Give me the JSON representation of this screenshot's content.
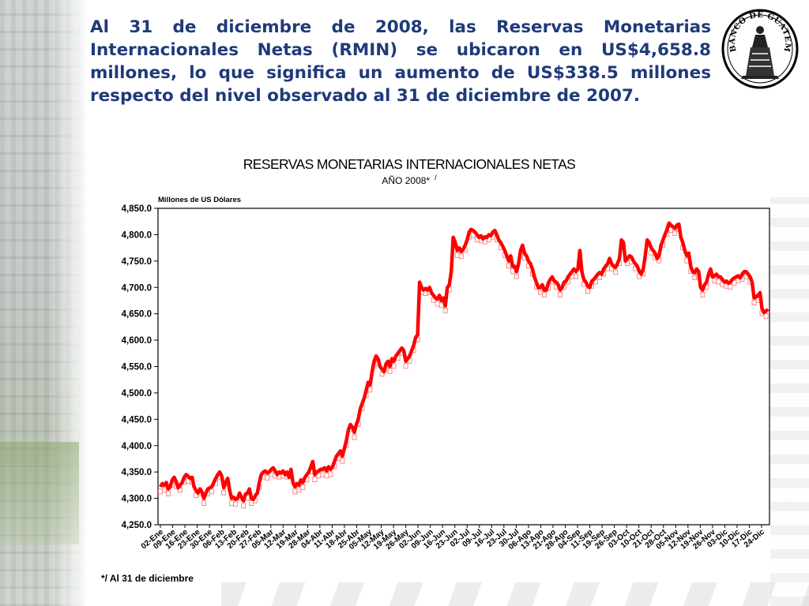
{
  "headline": "Al 31 de diciembre de 2008, las Reservas Monetarias Internacionales Netas (RMIN) se ubicaron en US$4,658.8 millones, lo que significa un aumento de US$338.5 millones respecto del nivel observado al 31 de diciembre de 2007.",
  "seal": {
    "text": "BANCO DE GUATEMALA",
    "icon": "banco-de-guatemala-seal"
  },
  "footnote": "*/ Al 31 de diciembre",
  "chart_data": {
    "type": "line",
    "title": "RESERVAS MONETARIAS INTERNACIONALES NETAS",
    "subtitle": "AÑO 2008*",
    "subtitle_mark": "/",
    "unit_label": "Millones de US Dólares",
    "xlabel": "",
    "ylabel": "",
    "ylim": [
      4250,
      4850
    ],
    "yticks": [
      "4,250.0",
      "4,300.0",
      "4,350.0",
      "4,400.0",
      "4,450.0",
      "4,500.0",
      "4,550.0",
      "4,600.0",
      "4,650.0",
      "4,700.0",
      "4,750.0",
      "4,800.0",
      "4,850.0"
    ],
    "xticks": [
      "02-Ene",
      "09-Ene",
      "16-Ene",
      "23-Ene",
      "30-Ene",
      "06-Feb",
      "13-Feb",
      "20-Feb",
      "27-Feb",
      "05-Mar",
      "12-Mar",
      "19-Mar",
      "28-Mar",
      "04-Abr",
      "11-Abr",
      "18-Abr",
      "25-Abr",
      "05-May",
      "12-May",
      "19-May",
      "26-May",
      "02-Jun",
      "09-Jun",
      "16-Jun",
      "23-Jun",
      "02-Jul",
      "09-Jul",
      "16-Jul",
      "23-Jul",
      "30-Jul",
      "06-Ago",
      "13-Ago",
      "21-Ago",
      "28-Ago",
      "04-Sep",
      "11-Sep",
      "19-Sep",
      "26-Sep",
      "03-Oct",
      "10-Oct",
      "21-Oct",
      "28-Oct",
      "05-Nov",
      "12-Nov",
      "19-Nov",
      "26-Nov",
      "03-Dic",
      "10-Dic",
      "17-Dic",
      "24-Dic"
    ],
    "grid": false,
    "legend": "none",
    "series_color": "#ff0000",
    "marker": "open-square",
    "values": [
      4322,
      4328,
      4325,
      4330,
      4318,
      4322,
      4335,
      4340,
      4332,
      4320,
      4325,
      4330,
      4340,
      4345,
      4342,
      4338,
      4340,
      4322,
      4315,
      4310,
      4318,
      4312,
      4300,
      4310,
      4318,
      4320,
      4322,
      4330,
      4338,
      4345,
      4350,
      4342,
      4320,
      4330,
      4338,
      4315,
      4300,
      4302,
      4298,
      4300,
      4310,
      4302,
      4295,
      4308,
      4310,
      4318,
      4300,
      4298,
      4305,
      4310,
      4330,
      4345,
      4350,
      4352,
      4348,
      4350,
      4355,
      4358,
      4352,
      4345,
      4350,
      4348,
      4352,
      4345,
      4350,
      4340,
      4355,
      4330,
      4322,
      4328,
      4325,
      4335,
      4330,
      4340,
      4345,
      4350,
      4360,
      4370,
      4345,
      4350,
      4352,
      4355,
      4355,
      4358,
      4352,
      4360,
      4355,
      4360,
      4370,
      4380,
      4385,
      4390,
      4380,
      4395,
      4410,
      4430,
      4440,
      4435,
      4425,
      4440,
      4450,
      4470,
      4480,
      4490,
      4505,
      4520,
      4515,
      4540,
      4560,
      4570,
      4565,
      4550,
      4545,
      4540,
      4555,
      4560,
      4550,
      4565,
      4560,
      4570,
      4575,
      4580,
      4585,
      4580,
      4560,
      4565,
      4570,
      4580,
      4590,
      4605,
      4610,
      4710,
      4700,
      4695,
      4698,
      4695,
      4700,
      4690,
      4685,
      4680,
      4678,
      4685,
      4675,
      4680,
      4665,
      4700,
      4705,
      4730,
      4795,
      4785,
      4770,
      4775,
      4768,
      4772,
      4780,
      4790,
      4805,
      4810,
      4808,
      4805,
      4800,
      4795,
      4798,
      4792,
      4796,
      4795,
      4800,
      4798,
      4805,
      4808,
      4800,
      4790,
      4785,
      4778,
      4770,
      4760,
      4750,
      4760,
      4740,
      4740,
      4730,
      4745,
      4770,
      4780,
      4765,
      4760,
      4750,
      4745,
      4735,
      4720,
      4710,
      4700,
      4700,
      4705,
      4695,
      4695,
      4708,
      4715,
      4720,
      4712,
      4710,
      4705,
      4695,
      4700,
      4710,
      4712,
      4720,
      4725,
      4730,
      4735,
      4730,
      4735,
      4770,
      4730,
      4715,
      4710,
      4702,
      4700,
      4712,
      4715,
      4720,
      4725,
      4728,
      4725,
      4735,
      4740,
      4745,
      4755,
      4745,
      4740,
      4738,
      4745,
      4755,
      4790,
      4785,
      4750,
      4755,
      4760,
      4758,
      4750,
      4745,
      4740,
      4730,
      4725,
      4735,
      4760,
      4790,
      4785,
      4775,
      4770,
      4765,
      4755,
      4760,
      4780,
      4790,
      4800,
      4810,
      4822,
      4818,
      4815,
      4812,
      4818,
      4820,
      4795,
      4785,
      4770,
      4760,
      4765,
      4740,
      4730,
      4728,
      4735,
      4730,
      4700,
      4695,
      4705,
      4710,
      4725,
      4735,
      4720,
      4722,
      4725,
      4720,
      4720,
      4715,
      4710,
      4712,
      4708,
      4710,
      4715,
      4718,
      4720,
      4722,
      4718,
      4725,
      4730,
      4730,
      4725,
      4720,
      4710,
      4680,
      4682,
      4685,
      4690,
      4660,
      4652,
      4655,
      4658.8
    ]
  }
}
